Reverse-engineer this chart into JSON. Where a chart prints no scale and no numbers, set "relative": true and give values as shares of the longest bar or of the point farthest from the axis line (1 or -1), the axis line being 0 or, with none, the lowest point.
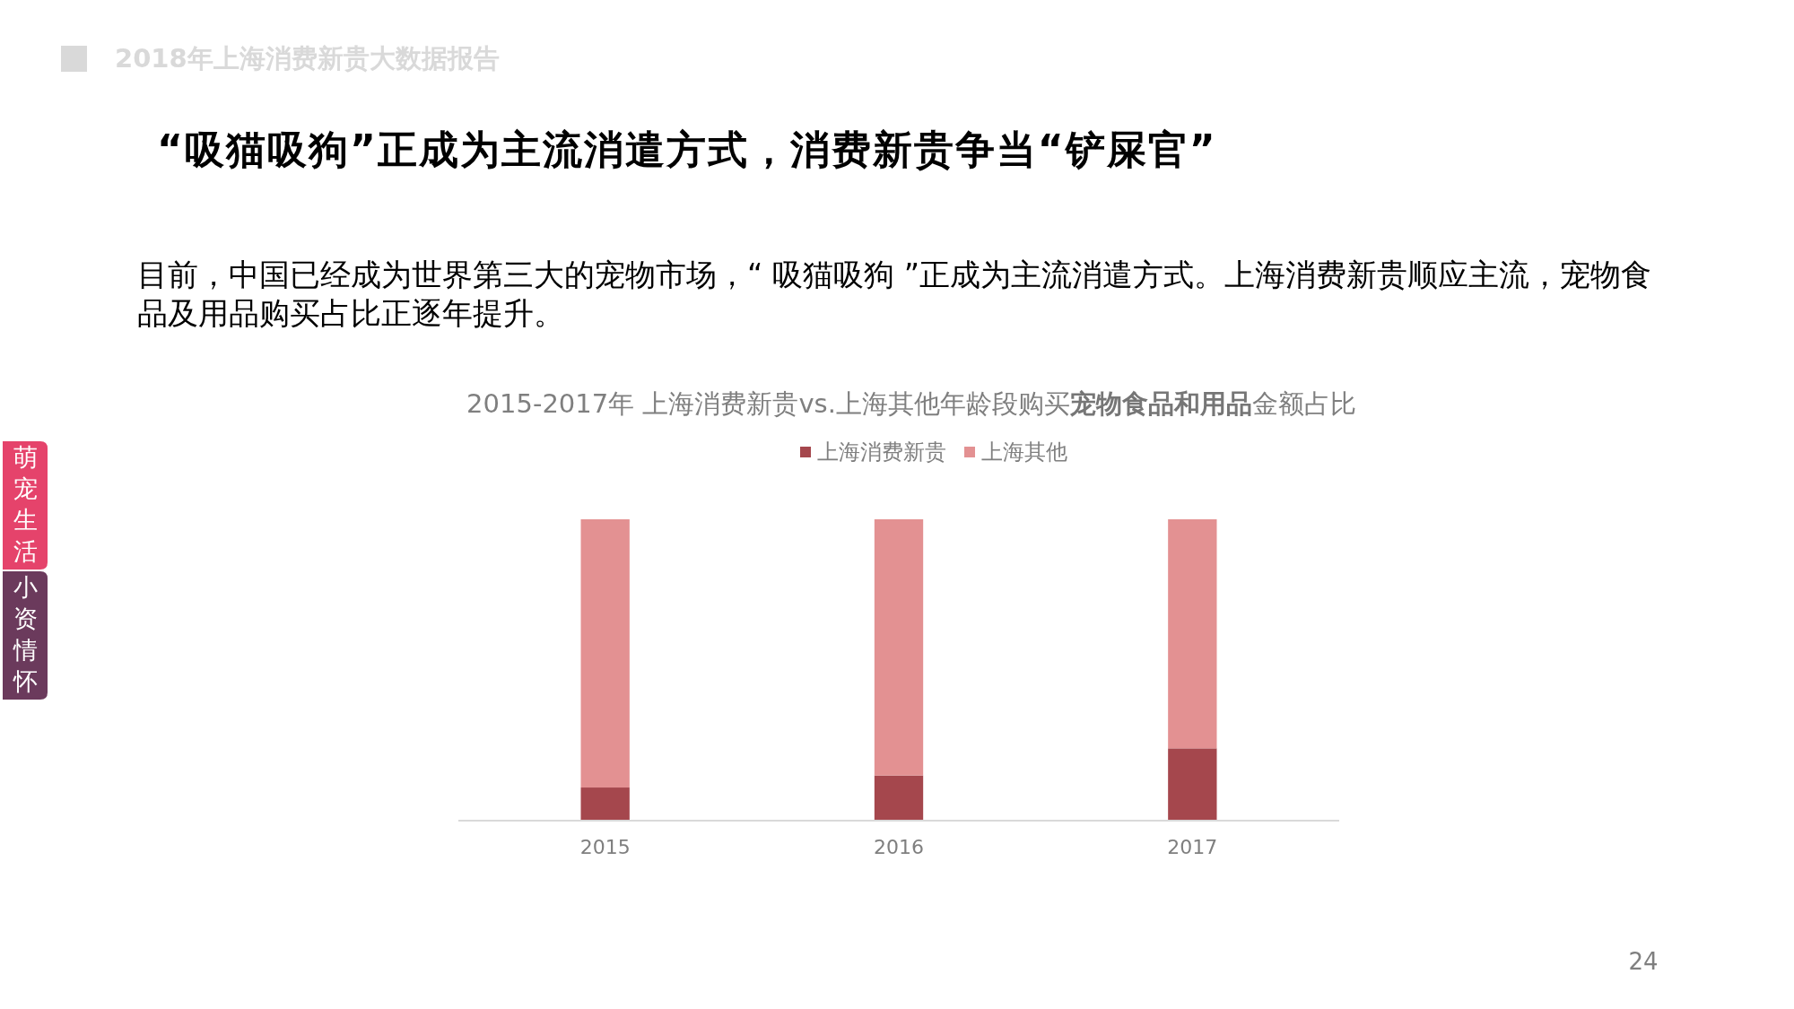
{
  "chart_data": {
    "type": "bar",
    "stacked": true,
    "relative": true,
    "title": "2015-2017年 上海消费新贵vs.上海其他年龄段购买**宠物食品和用品**金额占比",
    "annotations": [
      "2018年上海消费新贵大数据报告",
      "“吸猫吸狗”正成为主流消遣方式，消费新贵争当“铲屎官”",
      "目前，中国已经成为世界第三大的宠物市场，“ 吸猫吸狗 ”正成为主流消遣方式。上海消费新贵顺应主流，宠物食品及用品购买占比正逐年提升。",
      "萌宠生活",
      "小资情怀",
      "24"
    ],
    "categories": [
      "2015",
      "2016",
      "2017"
    ],
    "series": [
      {
        "name": "上海消费新贵",
        "color": "#a5474d",
        "values": [
          0.11,
          0.15,
          0.24
        ]
      },
      {
        "name": "上海其他",
        "color": "#e39192",
        "values": [
          0.89,
          0.85,
          0.76
        ]
      }
    ],
    "legend": "top"
  }
}
